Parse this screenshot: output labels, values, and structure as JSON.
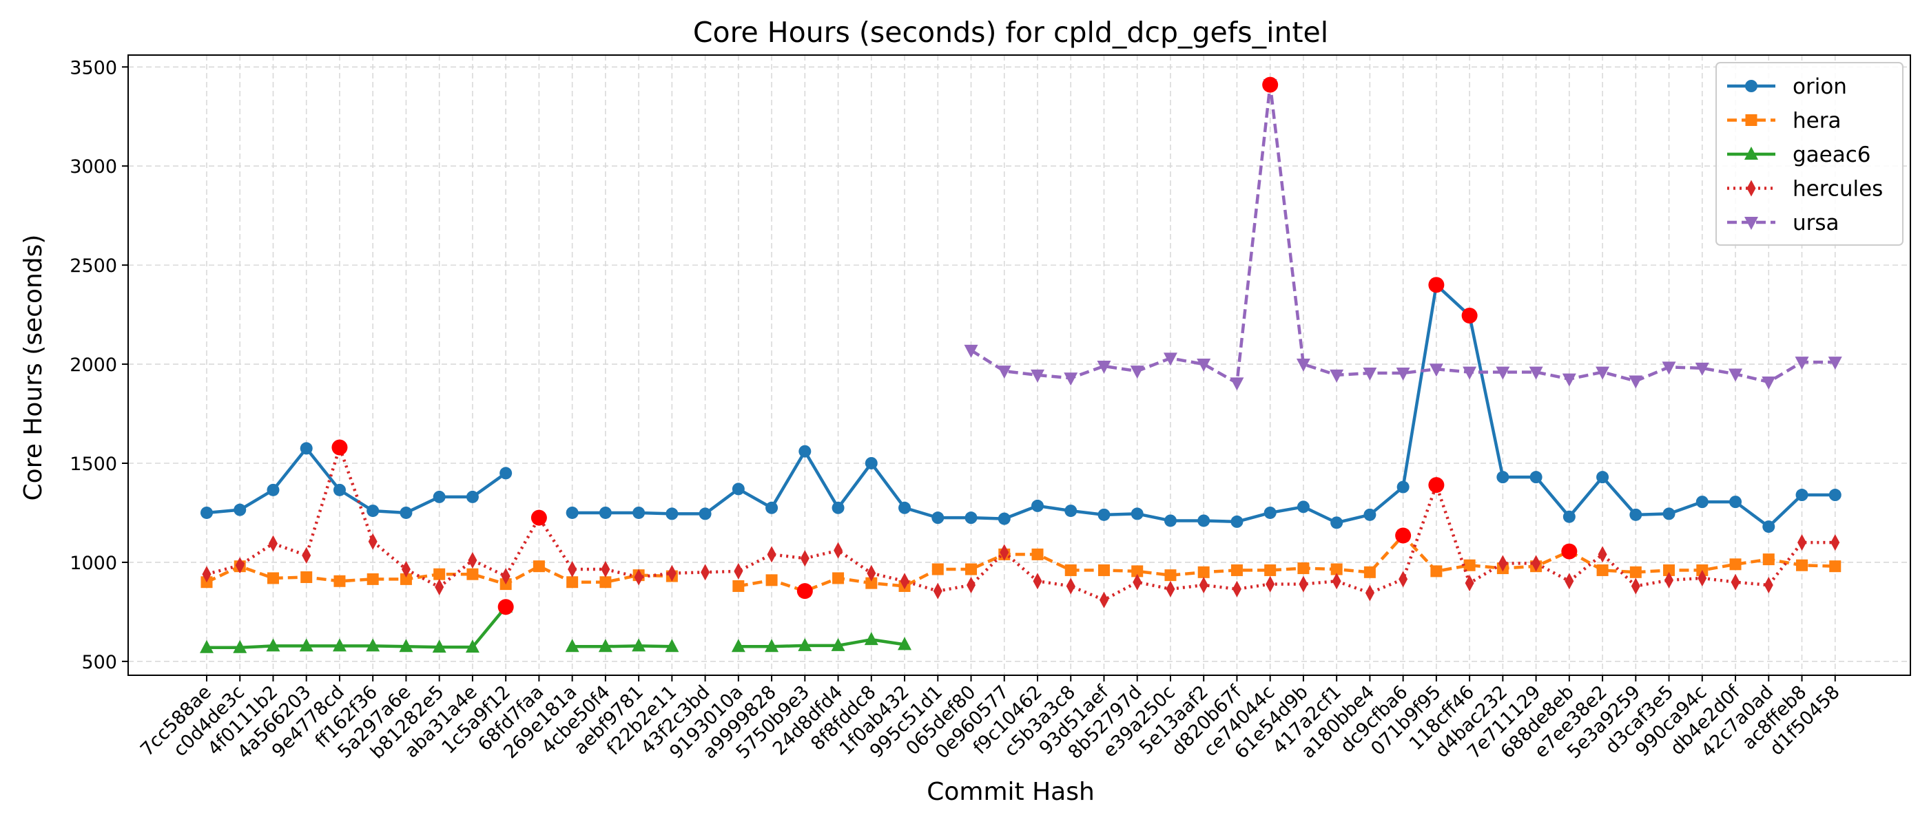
{
  "chart_data": {
    "type": "line",
    "title": "Core Hours (seconds) for cpld_dcp_gefs_intel",
    "xlabel": "Commit Hash",
    "ylabel": "Core Hours (seconds)",
    "ylim": [
      430,
      3560
    ],
    "yticks": [
      500,
      1000,
      1500,
      2000,
      2500,
      3000,
      3500
    ],
    "grid": true,
    "legend_position": "top-right",
    "categories": [
      "7cc588ae",
      "c0d4de3c",
      "4f0111b2",
      "4a566203",
      "9e4778cd",
      "ff162f36",
      "5a297a6e",
      "b81282e5",
      "aba31a4e",
      "1c5a9f12",
      "68fd7faa",
      "269e181a",
      "4cbe50f4",
      "aebf9781",
      "f22b2e11",
      "43f2c3bd",
      "9193010a",
      "a9999828",
      "5750b9e3",
      "24d8dfd4",
      "8f8fddc8",
      "1f0ab432",
      "995c51d1",
      "065def80",
      "0e960577",
      "f9c10462",
      "c5b3a3c8",
      "93d51aef",
      "8b52797d",
      "e39a250c",
      "5e13aaf2",
      "d820b67f",
      "ce74044c",
      "61e54d9b",
      "417a2cf1",
      "a180bbe4",
      "dc9cfba6",
      "071b9f95",
      "118cff46",
      "d4bac232",
      "7e711129",
      "688de8eb",
      "e7ee38e2",
      "5e3a9259",
      "d3caf3e5",
      "990ca94c",
      "db4e2d0f",
      "42c7a0ad",
      "ac8ffeb8",
      "d1f50458"
    ],
    "series": [
      {
        "name": "orion",
        "color": "#1f77b4",
        "marker": "circle",
        "dash": "solid",
        "values": [
          1250,
          1265,
          1365,
          1575,
          1365,
          1260,
          1250,
          1330,
          1330,
          1450,
          null,
          1250,
          1250,
          1250,
          1245,
          1245,
          1370,
          1275,
          1560,
          1275,
          1500,
          1275,
          1225,
          1225,
          1220,
          1285,
          1260,
          1240,
          1245,
          1210,
          1210,
          1205,
          1250,
          1280,
          1200,
          1240,
          1380,
          2400,
          2245,
          1430,
          1430,
          1230,
          1430,
          1240,
          1245,
          1305,
          1305,
          1180,
          1340,
          1340
        ]
      },
      {
        "name": "hera",
        "color": "#ff7f0e",
        "marker": "square",
        "dash": "dashed",
        "values": [
          900,
          980,
          920,
          925,
          905,
          915,
          915,
          940,
          940,
          890,
          980,
          900,
          900,
          935,
          930,
          null,
          880,
          910,
          855,
          920,
          895,
          880,
          965,
          965,
          1040,
          1040,
          960,
          960,
          955,
          935,
          950,
          960,
          960,
          970,
          965,
          950,
          1135,
          955,
          985,
          970,
          980,
          1055,
          960,
          950,
          960,
          960,
          990,
          1015,
          985,
          980
        ]
      },
      {
        "name": "gaeac6",
        "color": "#2ca02c",
        "marker": "triangle-up",
        "dash": "solid",
        "values": [
          570,
          570,
          578,
          578,
          578,
          578,
          575,
          572,
          572,
          775,
          null,
          575,
          575,
          578,
          575,
          null,
          575,
          575,
          580,
          580,
          610,
          585,
          null,
          null,
          null,
          null,
          null,
          null,
          null,
          null,
          null,
          null,
          null,
          null,
          null,
          null,
          null,
          null,
          null,
          null,
          null,
          null,
          null,
          null,
          null,
          null,
          null,
          null,
          null,
          null
        ]
      },
      {
        "name": "hercules",
        "color": "#d62728",
        "marker": "thin-diamond",
        "dash": "dotted",
        "values": [
          940,
          985,
          1095,
          1035,
          1580,
          1105,
          965,
          875,
          1010,
          930,
          1225,
          965,
          965,
          925,
          945,
          950,
          955,
          1040,
          1020,
          1060,
          945,
          905,
          855,
          885,
          1050,
          905,
          880,
          810,
          900,
          865,
          885,
          865,
          890,
          890,
          905,
          845,
          915,
          1390,
          895,
          995,
          995,
          905,
          1040,
          880,
          910,
          920,
          900,
          885,
          1100,
          1100
        ]
      },
      {
        "name": "ursa",
        "color": "#9467bd",
        "marker": "triangle-down",
        "dash": "dashed",
        "values": [
          null,
          null,
          null,
          null,
          null,
          null,
          null,
          null,
          null,
          null,
          null,
          null,
          null,
          null,
          null,
          null,
          null,
          null,
          null,
          null,
          null,
          null,
          null,
          2070,
          1965,
          1945,
          1930,
          1990,
          1965,
          2030,
          2000,
          1905,
          3410,
          2000,
          1945,
          1955,
          1955,
          1975,
          1960,
          1960,
          1960,
          1925,
          1960,
          1915,
          1985,
          1980,
          1950,
          1910,
          2010,
          2010
        ]
      }
    ],
    "highlighted_points": [
      {
        "series": "hercules",
        "x": "9e4778cd",
        "y": 1580
      },
      {
        "series": "gaeac6",
        "x": "1c5a9f12",
        "y": 775
      },
      {
        "series": "hercules",
        "x": "68fd7faa",
        "y": 1225
      },
      {
        "series": "hera",
        "x": "5750b9e3",
        "y": 855
      },
      {
        "series": "ursa",
        "x": "ce74044c",
        "y": 3410
      },
      {
        "series": "hera",
        "x": "dc9cfba6",
        "y": 1135
      },
      {
        "series": "orion",
        "x": "071b9f95",
        "y": 2400
      },
      {
        "series": "hercules",
        "x": "071b9f95",
        "y": 1390
      },
      {
        "series": "orion",
        "x": "118cff46",
        "y": 2245
      },
      {
        "series": "hera",
        "x": "688de8eb",
        "y": 1055
      }
    ],
    "highlight_color": "#ff0000"
  }
}
